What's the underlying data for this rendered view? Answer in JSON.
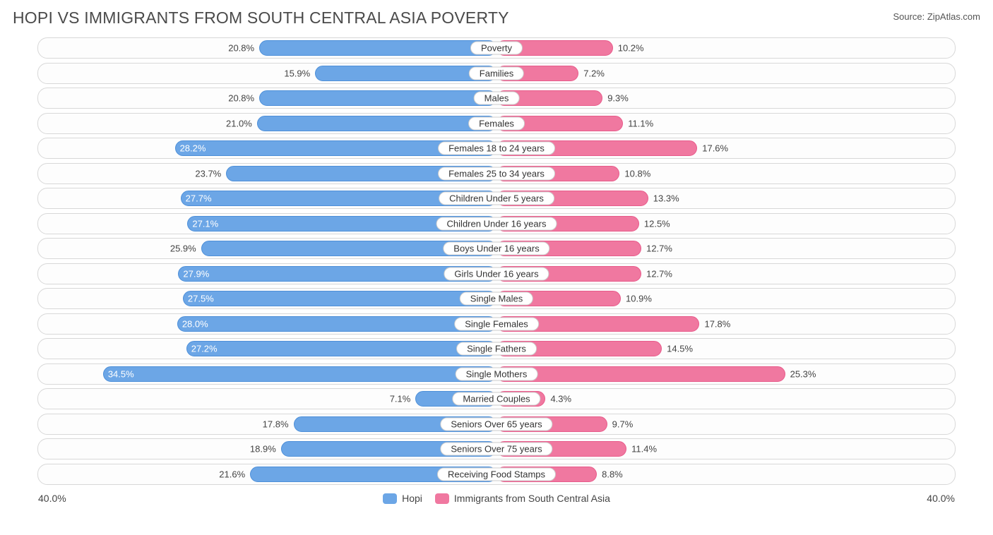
{
  "title": "HOPI VS IMMIGRANTS FROM SOUTH CENTRAL ASIA POVERTY",
  "source_label": "Source: ",
  "source_name": "ZipAtlas.com",
  "axis_max_pct": 40.0,
  "axis_max_label_left": "40.0%",
  "axis_max_label_right": "40.0%",
  "colors": {
    "left_bar": "#6ca6e6",
    "left_bar_border": "#4d8fd9",
    "right_bar": "#f078a0",
    "right_bar_border": "#e85a8a",
    "row_border": "#d8d8d8",
    "row_bg": "#fdfdfd",
    "text": "#444444",
    "title_text": "#4a4a4a",
    "label_border": "#cccccc",
    "background": "#ffffff"
  },
  "legend": {
    "left": {
      "label": "Hopi",
      "color": "#6ca6e6"
    },
    "right": {
      "label": "Immigrants from South Central Asia",
      "color": "#f078a0"
    }
  },
  "label_inside_threshold_pct": 26.0,
  "rows": [
    {
      "category": "Poverty",
      "left_value": 20.8,
      "right_value": 10.2
    },
    {
      "category": "Families",
      "left_value": 15.9,
      "right_value": 7.2
    },
    {
      "category": "Males",
      "left_value": 20.8,
      "right_value": 9.3
    },
    {
      "category": "Females",
      "left_value": 21.0,
      "right_value": 11.1
    },
    {
      "category": "Females 18 to 24 years",
      "left_value": 28.2,
      "right_value": 17.6
    },
    {
      "category": "Females 25 to 34 years",
      "left_value": 23.7,
      "right_value": 10.8
    },
    {
      "category": "Children Under 5 years",
      "left_value": 27.7,
      "right_value": 13.3
    },
    {
      "category": "Children Under 16 years",
      "left_value": 27.1,
      "right_value": 12.5
    },
    {
      "category": "Boys Under 16 years",
      "left_value": 25.9,
      "right_value": 12.7
    },
    {
      "category": "Girls Under 16 years",
      "left_value": 27.9,
      "right_value": 12.7
    },
    {
      "category": "Single Males",
      "left_value": 27.5,
      "right_value": 10.9
    },
    {
      "category": "Single Females",
      "left_value": 28.0,
      "right_value": 17.8
    },
    {
      "category": "Single Fathers",
      "left_value": 27.2,
      "right_value": 14.5
    },
    {
      "category": "Single Mothers",
      "left_value": 34.5,
      "right_value": 25.3
    },
    {
      "category": "Married Couples",
      "left_value": 7.1,
      "right_value": 4.3
    },
    {
      "category": "Seniors Over 65 years",
      "left_value": 17.8,
      "right_value": 9.7
    },
    {
      "category": "Seniors Over 75 years",
      "left_value": 18.9,
      "right_value": 11.4
    },
    {
      "category": "Receiving Food Stamps",
      "left_value": 21.6,
      "right_value": 8.8
    }
  ]
}
